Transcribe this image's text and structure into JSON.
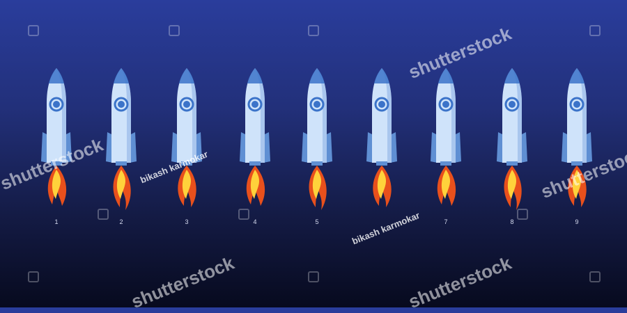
{
  "rockets": [
    {
      "label": "1"
    },
    {
      "label": "2"
    },
    {
      "label": "3"
    },
    {
      "label": "4"
    },
    {
      "label": "5"
    },
    {
      "label": ""
    },
    {
      "label": "7"
    },
    {
      "label": "8"
    },
    {
      "label": "9"
    }
  ],
  "watermarks": {
    "brand": "shutterstock",
    "author": "bikash karmokar"
  },
  "colors": {
    "background_top": "#2a3d9c",
    "background_bottom": "#070a1e",
    "rocket_body": "#cfe3fa",
    "rocket_shade": "#8fb3e6",
    "rocket_fin": "#5f8fd3",
    "window": "#3b73c9",
    "flame_outer": "#e8501c",
    "flame_inner": "#ffd23b"
  }
}
